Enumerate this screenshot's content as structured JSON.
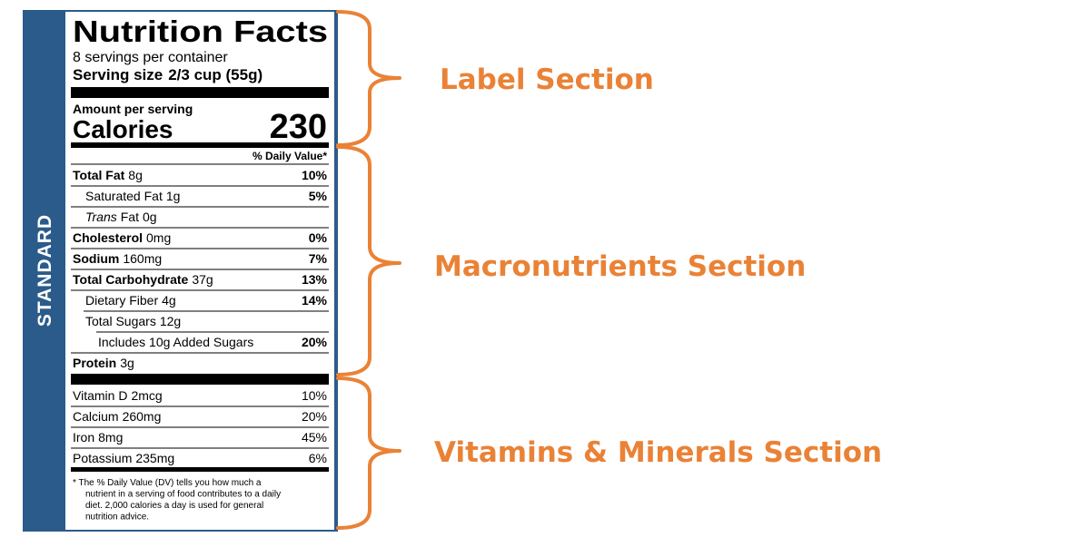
{
  "sidebar": "STANDARD",
  "label": {
    "title": "Nutrition Facts",
    "servings": "8 servings per container",
    "serving_size_label": "Serving size",
    "serving_size_value": "2/3 cup (55g)",
    "amount_per_serving": "Amount per serving",
    "calories_label": "Calories",
    "calories": 230,
    "dv_header": "% Daily Value*",
    "nutrients": [
      {
        "name": "Total Fat",
        "amount": "8g",
        "dv": "10%"
      },
      {
        "name": "Saturated Fat",
        "amount": "1g",
        "dv": "5%"
      },
      {
        "name_italic": "Trans",
        "name": "Fat",
        "amount": "0g"
      },
      {
        "name": "Cholesterol",
        "amount": "0mg",
        "dv": "0%"
      },
      {
        "name": "Sodium",
        "amount": "160mg",
        "dv": "7%"
      },
      {
        "name": "Total Carbohydrate",
        "amount": "37g",
        "dv": "13%"
      },
      {
        "name": "Dietary Fiber",
        "amount": "4g",
        "dv": "14%"
      },
      {
        "name": "Total Sugars",
        "amount": "12g"
      },
      {
        "name": "Includes 10g Added Sugars",
        "dv": "20%"
      },
      {
        "name": "Protein",
        "amount": "3g"
      }
    ],
    "vitamins": [
      {
        "name": "Vitamin D",
        "amount": "2mcg",
        "dv": "10%"
      },
      {
        "name": "Calcium",
        "amount": "260mg",
        "dv": "20%"
      },
      {
        "name": "Iron",
        "amount": "8mg",
        "dv": "45%"
      },
      {
        "name": "Potassium",
        "amount": "235mg",
        "dv": "6%"
      }
    ],
    "footnote": [
      "* The % Daily Value (DV) tells you how much a",
      "nutrient in a serving of food contributes to a daily",
      "diet. 2,000 calories a day is used for general",
      "nutrition advice."
    ]
  },
  "sections": [
    "Label Section",
    "Macronutrients Section",
    "Vitamins & Minerals Section"
  ]
}
